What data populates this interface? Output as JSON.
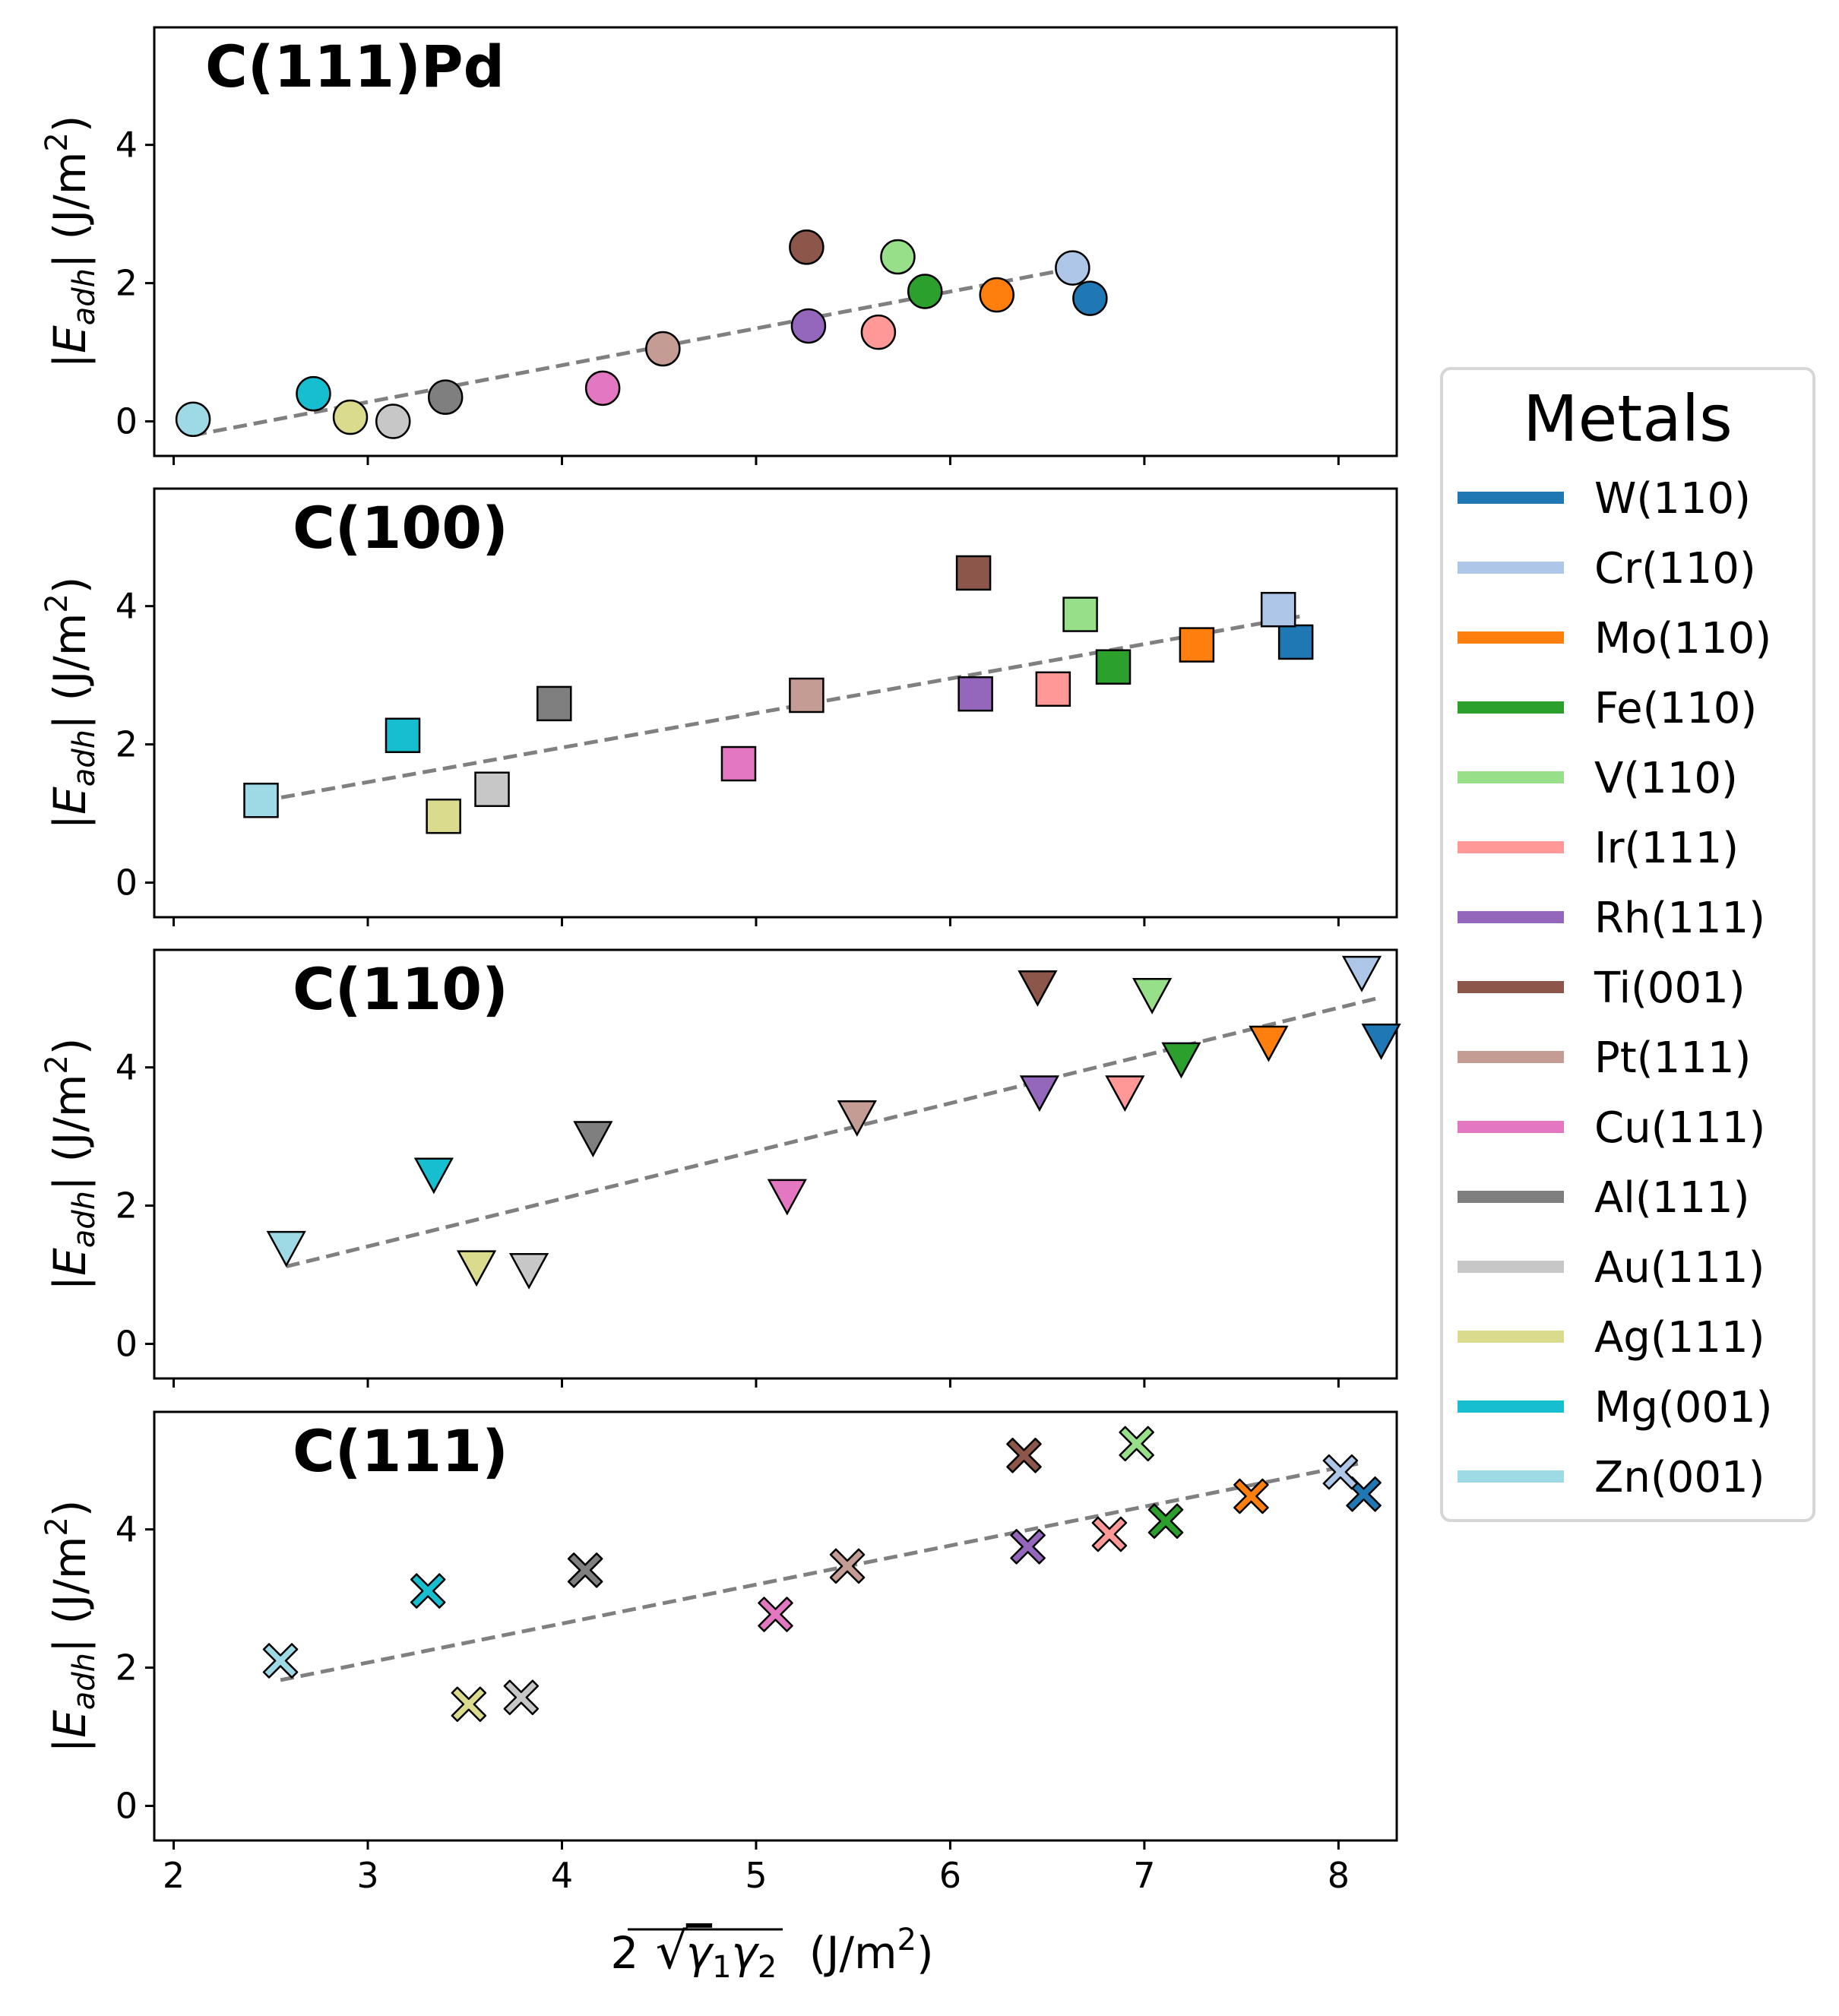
{
  "chart_data": {
    "type": "scatter",
    "xlabel_parts": {
      "coef": "2",
      "gamma": "γ",
      "sub1": "1",
      "sub2": "2",
      "unit_prefix": "(J/m",
      "unit_exp": "2",
      "unit_suffix": ")"
    },
    "ylabel_parts": {
      "bar_left": "|",
      "E": "E",
      "sub": "adh",
      "bar_right": "|",
      "unit_prefix": "(J/m",
      "unit_exp": "2",
      "unit_suffix": ")"
    },
    "x_ticks": [
      "2",
      "3",
      "4",
      "5",
      "6",
      "7",
      "8"
    ],
    "y_ticks": [
      "0",
      "2",
      "4"
    ],
    "xlim": [
      1.9,
      8.3
    ],
    "ylim": [
      -0.5,
      5.7
    ],
    "legend": {
      "title": "Metals",
      "placement": "right",
      "entries": [
        {
          "label": "W(110)",
          "color": "#1f77b4"
        },
        {
          "label": "Cr(110)",
          "color": "#aec7e8"
        },
        {
          "label": "Mo(110)",
          "color": "#ff7f0e"
        },
        {
          "label": "Fe(110)",
          "color": "#2ca02c"
        },
        {
          "label": "V(110)",
          "color": "#98df8a"
        },
        {
          "label": "Ir(111)",
          "color": "#ff9896"
        },
        {
          "label": "Rh(111)",
          "color": "#9467bd"
        },
        {
          "label": "Ti(001)",
          "color": "#8c564b"
        },
        {
          "label": "Pt(111)",
          "color": "#c49c94"
        },
        {
          "label": "Cu(111)",
          "color": "#e377c2"
        },
        {
          "label": "Al(111)",
          "color": "#7f7f7f"
        },
        {
          "label": "Au(111)",
          "color": "#c7c7c7"
        },
        {
          "label": "Ag(111)",
          "color": "#dbdb8d"
        },
        {
          "label": "Mg(001)",
          "color": "#17becf"
        },
        {
          "label": "Zn(001)",
          "color": "#9edae5"
        }
      ]
    },
    "panels": [
      {
        "title": "C(111)Pd",
        "marker": "circle",
        "fit": {
          "x": [
            2.1,
            6.7
          ],
          "y": [
            -0.2,
            2.25
          ]
        },
        "points": [
          {
            "metal": "W(110)",
            "x": 6.72,
            "y": 1.78
          },
          {
            "metal": "Cr(110)",
            "x": 6.63,
            "y": 2.22
          },
          {
            "metal": "Mo(110)",
            "x": 6.24,
            "y": 1.83
          },
          {
            "metal": "Fe(110)",
            "x": 5.87,
            "y": 1.88
          },
          {
            "metal": "V(110)",
            "x": 5.73,
            "y": 2.38
          },
          {
            "metal": "Ir(111)",
            "x": 5.63,
            "y": 1.29
          },
          {
            "metal": "Rh(111)",
            "x": 5.27,
            "y": 1.38
          },
          {
            "metal": "Ti(001)",
            "x": 5.26,
            "y": 2.52
          },
          {
            "metal": "Pt(111)",
            "x": 4.52,
            "y": 1.05
          },
          {
            "metal": "Cu(111)",
            "x": 4.21,
            "y": 0.48
          },
          {
            "metal": "Al(111)",
            "x": 3.4,
            "y": 0.35
          },
          {
            "metal": "Au(111)",
            "x": 3.13,
            "y": 0.0
          },
          {
            "metal": "Ag(111)",
            "x": 2.91,
            "y": 0.06
          },
          {
            "metal": "Mg(001)",
            "x": 2.72,
            "y": 0.4
          },
          {
            "metal": "Zn(001)",
            "x": 2.1,
            "y": 0.03
          }
        ]
      },
      {
        "title": "C(100)",
        "marker": "square",
        "fit": {
          "x": [
            2.45,
            7.8
          ],
          "y": [
            1.18,
            3.85
          ]
        },
        "points": [
          {
            "metal": "W(110)",
            "x": 7.78,
            "y": 3.48
          },
          {
            "metal": "Cr(110)",
            "x": 7.69,
            "y": 3.95
          },
          {
            "metal": "Mo(110)",
            "x": 7.27,
            "y": 3.44
          },
          {
            "metal": "Fe(110)",
            "x": 6.84,
            "y": 3.12
          },
          {
            "metal": "V(110)",
            "x": 6.67,
            "y": 3.88
          },
          {
            "metal": "Ir(111)",
            "x": 6.53,
            "y": 2.8
          },
          {
            "metal": "Rh(111)",
            "x": 6.13,
            "y": 2.73
          },
          {
            "metal": "Ti(001)",
            "x": 6.12,
            "y": 4.48
          },
          {
            "metal": "Pt(111)",
            "x": 5.26,
            "y": 2.71
          },
          {
            "metal": "Cu(111)",
            "x": 4.91,
            "y": 1.72
          },
          {
            "metal": "Al(111)",
            "x": 3.96,
            "y": 2.59
          },
          {
            "metal": "Au(111)",
            "x": 3.64,
            "y": 1.35
          },
          {
            "metal": "Ag(111)",
            "x": 3.39,
            "y": 0.96
          },
          {
            "metal": "Mg(001)",
            "x": 3.18,
            "y": 2.13
          },
          {
            "metal": "Zn(001)",
            "x": 2.45,
            "y": 1.19
          }
        ]
      },
      {
        "title": "C(110)",
        "marker": "triangle_down",
        "fit": {
          "x": [
            2.58,
            8.2
          ],
          "y": [
            1.12,
            5.0
          ]
        },
        "points": [
          {
            "metal": "W(110)",
            "x": 8.22,
            "y": 4.4
          },
          {
            "metal": "Cr(110)",
            "x": 8.12,
            "y": 5.38
          },
          {
            "metal": "Mo(110)",
            "x": 7.64,
            "y": 4.37
          },
          {
            "metal": "Fe(110)",
            "x": 7.19,
            "y": 4.13
          },
          {
            "metal": "V(110)",
            "x": 7.04,
            "y": 5.06
          },
          {
            "metal": "Ir(111)",
            "x": 6.9,
            "y": 3.65
          },
          {
            "metal": "Rh(111)",
            "x": 6.46,
            "y": 3.65
          },
          {
            "metal": "Ti(001)",
            "x": 6.45,
            "y": 5.17
          },
          {
            "metal": "Pt(111)",
            "x": 5.52,
            "y": 3.29
          },
          {
            "metal": "Cu(111)",
            "x": 5.16,
            "y": 2.15
          },
          {
            "metal": "Al(111)",
            "x": 4.16,
            "y": 2.99
          },
          {
            "metal": "Au(111)",
            "x": 3.83,
            "y": 1.08
          },
          {
            "metal": "Ag(111)",
            "x": 3.56,
            "y": 1.12
          },
          {
            "metal": "Mg(001)",
            "x": 3.34,
            "y": 2.46
          },
          {
            "metal": "Zn(001)",
            "x": 2.58,
            "y": 1.4
          }
        ]
      },
      {
        "title": "C(111)",
        "marker": "x",
        "fit": {
          "x": [
            2.55,
            8.1
          ],
          "y": [
            1.82,
            4.95
          ]
        },
        "points": [
          {
            "metal": "W(110)",
            "x": 8.13,
            "y": 4.51
          },
          {
            "metal": "Cr(110)",
            "x": 8.01,
            "y": 4.83
          },
          {
            "metal": "Mo(110)",
            "x": 7.55,
            "y": 4.48
          },
          {
            "metal": "Fe(110)",
            "x": 7.11,
            "y": 4.12
          },
          {
            "metal": "V(110)",
            "x": 6.96,
            "y": 5.24
          },
          {
            "metal": "Ir(111)",
            "x": 6.82,
            "y": 3.93
          },
          {
            "metal": "Rh(111)",
            "x": 6.4,
            "y": 3.75
          },
          {
            "metal": "Ti(001)",
            "x": 6.38,
            "y": 5.07
          },
          {
            "metal": "Pt(111)",
            "x": 5.47,
            "y": 3.47
          },
          {
            "metal": "Cu(111)",
            "x": 5.1,
            "y": 2.77
          },
          {
            "metal": "Al(111)",
            "x": 4.12,
            "y": 3.41
          },
          {
            "metal": "Au(111)",
            "x": 3.79,
            "y": 1.57
          },
          {
            "metal": "Ag(111)",
            "x": 3.52,
            "y": 1.47
          },
          {
            "metal": "Mg(001)",
            "x": 3.31,
            "y": 3.11
          },
          {
            "metal": "Zn(001)",
            "x": 2.55,
            "y": 2.1
          }
        ]
      }
    ]
  }
}
